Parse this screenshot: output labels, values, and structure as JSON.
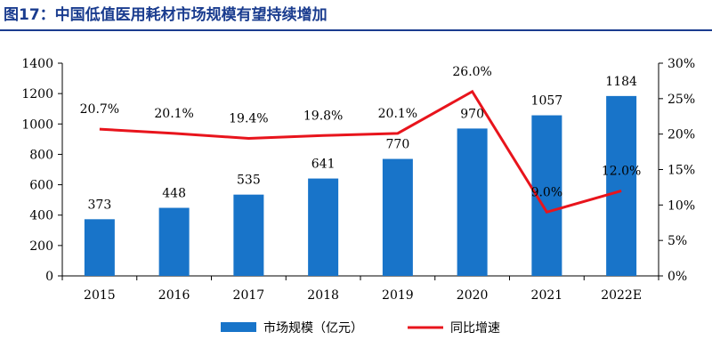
{
  "title": "图17：中国低值医用耗材市场规模有望持续增加",
  "colors": {
    "title": "#1a3c8f",
    "bar": "#1874c9",
    "line": "#e8141c"
  },
  "chart_data": {
    "type": "bar+line",
    "categories": [
      "2015",
      "2016",
      "2017",
      "2018",
      "2019",
      "2020",
      "2021",
      "2022E"
    ],
    "series": [
      {
        "name": "市场规模（亿元）",
        "type": "bar",
        "axis": "left",
        "values": [
          373,
          448,
          535,
          641,
          770,
          970,
          1057,
          1184
        ],
        "labels": [
          "373",
          "448",
          "535",
          "641",
          "770",
          "970",
          "1057",
          "1184"
        ]
      },
      {
        "name": "同比增速",
        "type": "line",
        "axis": "right",
        "values": [
          20.7,
          20.1,
          19.4,
          19.8,
          20.1,
          26.0,
          9.0,
          12.0
        ],
        "labels": [
          "20.7%",
          "20.1%",
          "19.4%",
          "19.8%",
          "20.1%",
          "26.0%",
          "9.0%",
          "12.0%"
        ]
      }
    ],
    "y_left": {
      "ylim": [
        0,
        1400
      ],
      "ticks": [
        "0",
        "200",
        "400",
        "600",
        "800",
        "1000",
        "1200",
        "1400"
      ]
    },
    "y_right": {
      "ylim": [
        0,
        30
      ],
      "ticks": [
        "0%",
        "5%",
        "10%",
        "15%",
        "20%",
        "25%",
        "30%"
      ]
    },
    "grid": false,
    "legend_position": "bottom"
  }
}
